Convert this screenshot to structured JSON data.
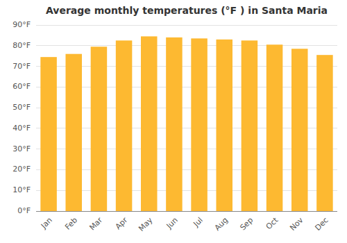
{
  "chart_data": {
    "type": "bar",
    "title": "Average monthly temperatures (°F ) in Santa Maria",
    "categories": [
      "Jan",
      "Feb",
      "Mar",
      "Apr",
      "May",
      "Jun",
      "Jul",
      "Aug",
      "Sep",
      "Oct",
      "Nov",
      "Dec"
    ],
    "values": [
      74.5,
      76.0,
      79.5,
      82.5,
      84.5,
      84.0,
      83.5,
      83.0,
      82.5,
      80.5,
      78.5,
      75.5
    ],
    "color": "#FDB931",
    "ylim": [
      0,
      90
    ],
    "yticks": [
      {
        "value": 0,
        "label": "0°F"
      },
      {
        "value": 10,
        "label": "10°F"
      },
      {
        "value": 20,
        "label": "20°F"
      },
      {
        "value": 30,
        "label": "30°F"
      },
      {
        "value": 40,
        "label": "40°F"
      },
      {
        "value": 50,
        "label": "50°F"
      },
      {
        "value": 60,
        "label": "60°F"
      },
      {
        "value": 70,
        "label": "70°F"
      },
      {
        "value": 80,
        "label": "80°F"
      },
      {
        "value": 90,
        "label": "90°F"
      }
    ],
    "grid": true
  }
}
